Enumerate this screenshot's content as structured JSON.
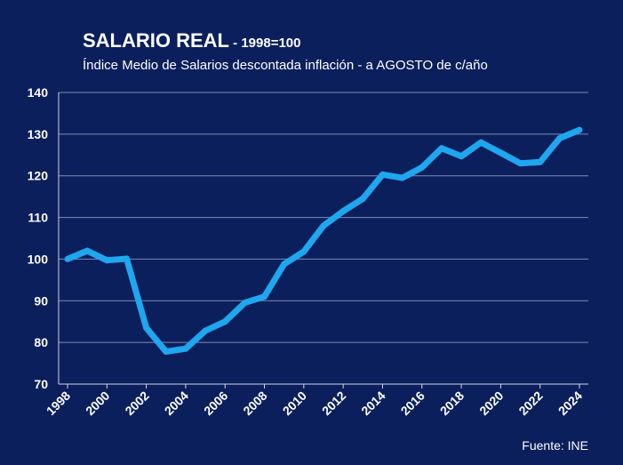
{
  "chart_data": {
    "type": "line",
    "title": "SALARIO REAL",
    "title_suffix": " - 1998=100",
    "subtitle": "Índice Medio de Salarios descontada inflación - a AGOSTO de c/año",
    "source": "Fuente: INE",
    "xlabel": "",
    "ylabel": "",
    "ylim": [
      70,
      140
    ],
    "yticks": [
      70,
      80,
      90,
      100,
      110,
      120,
      130,
      140
    ],
    "xticks": [
      "1998",
      "2000",
      "2002",
      "2004",
      "2006",
      "2008",
      "2010",
      "2012",
      "2014",
      "2016",
      "2018",
      "2020",
      "2022",
      "2024"
    ],
    "grid": true,
    "legend": "none",
    "line_color": "#1ea7ef",
    "x": [
      1998,
      1999,
      2000,
      2001,
      2002,
      2003,
      2004,
      2005,
      2006,
      2007,
      2008,
      2009,
      2010,
      2011,
      2012,
      2013,
      2014,
      2015,
      2016,
      2017,
      2018,
      2019,
      2020,
      2021,
      2022,
      2023,
      2024
    ],
    "series": [
      {
        "values": [
          100,
          102,
          99.7,
          100.1,
          83.5,
          77.8,
          78.5,
          82.8,
          85,
          89.5,
          91,
          98.8,
          101.8,
          108,
          111.5,
          114.5,
          120.3,
          119.5,
          122,
          126.6,
          124.7,
          128,
          125.5,
          123,
          123.3,
          129,
          131
        ]
      }
    ]
  }
}
